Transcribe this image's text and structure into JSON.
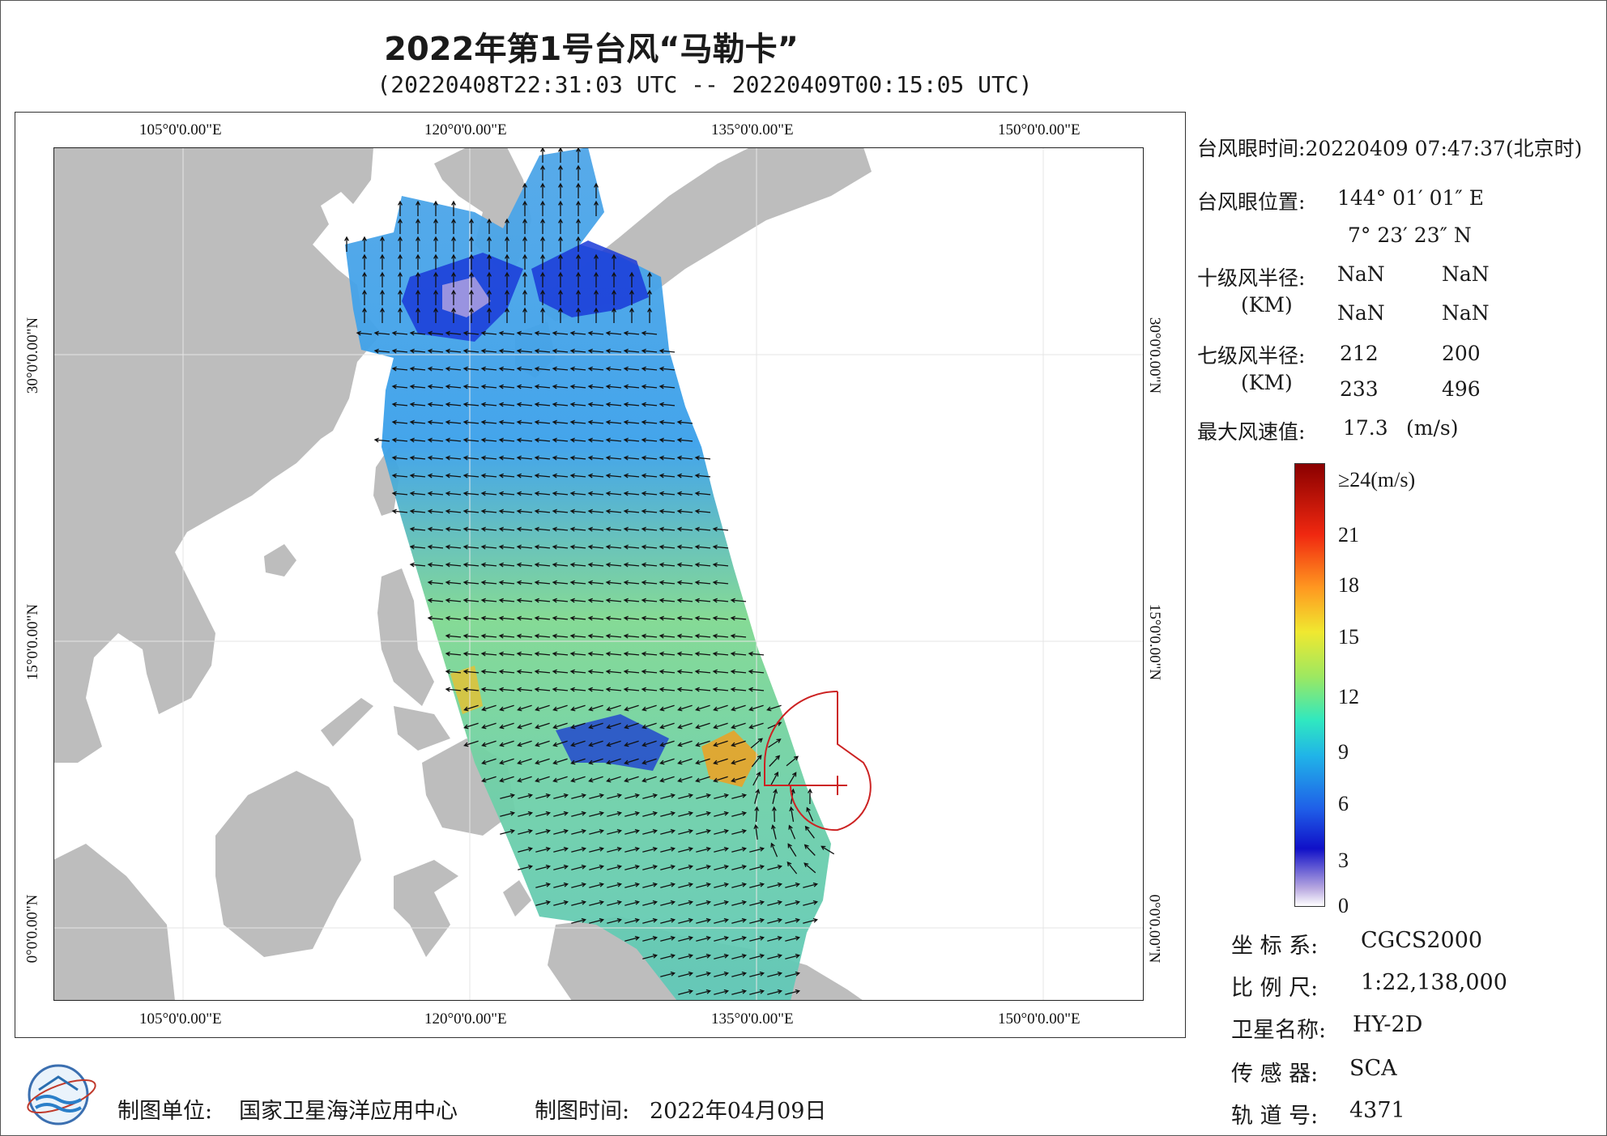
{
  "header": {
    "title": "2022年第1号台风“马勒卡”",
    "subtitle": "(20220408T22:31:03 UTC -- 20220409T00:15:05 UTC)"
  },
  "map": {
    "extent": {
      "lon_min": 98.2,
      "lon_max": 155.2,
      "lat_min": -3.8,
      "lat_max": 40.8
    },
    "lon_ticks": [
      "105°0'0.00\"E",
      "120°0'0.00\"E",
      "135°0'0.00\"E",
      "150°0'0.00\"E"
    ],
    "lat_ticks": [
      "0°0'0.00\"N",
      "15°0'0.00\"N",
      "30°0'0.00\"N"
    ],
    "colors": {
      "land": "#bdbdbd",
      "sea": "#ffffff",
      "typhoon_marker": "#cc2222",
      "arrow": "#111111"
    }
  },
  "info": {
    "eye_time_label": "台风眼时间:",
    "eye_time_value": "20220409 07:47:37(北京时)",
    "eye_pos_label": "台风眼位置:",
    "eye_lon": "144° 01′ 01″ E",
    "eye_lat": "7° 23′ 23″ N",
    "r10_label": "十级风半径:",
    "r10_unit": "(KM)",
    "r10_values": [
      "NaN",
      "NaN",
      "NaN",
      "NaN"
    ],
    "r7_label": "七级风半径:",
    "r7_unit": "(KM)",
    "r7_values": [
      "212",
      "200",
      "233",
      "496"
    ],
    "max_wind_label": "最大风速值:",
    "max_wind_value": "17.3",
    "max_wind_unit": "(m/s)"
  },
  "colorbar": {
    "labels": [
      "≥24(m/s)",
      "21",
      "18",
      "15",
      "12",
      "9",
      "6",
      "3",
      "0"
    ]
  },
  "meta": {
    "crs_label": "坐 标 系:",
    "crs_value": "CGCS2000",
    "scale_label": "比 例 尺:",
    "scale_value": "1:22,138,000",
    "satellite_label": "卫星名称:",
    "satellite_value": "HY-2D",
    "sensor_label": "传 感 器:",
    "sensor_value": "SCA",
    "orbit_label": "轨 道 号:",
    "orbit_value": "4371"
  },
  "footer": {
    "org_label": "制图单位:",
    "org_value": "国家卫星海洋应用中心",
    "date_label": "制图时间:",
    "date_value": "2022年04月09日"
  }
}
